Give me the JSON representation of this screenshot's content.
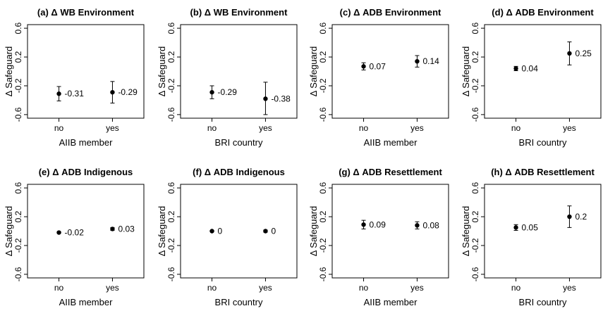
{
  "chart_data": [
    {
      "type": "scatter",
      "title": "(a) Δ WB Environment",
      "xlabel": "AIIB member",
      "ylabel": "Δ Safeguard",
      "categories": [
        "no",
        "yes"
      ],
      "values": [
        -0.31,
        -0.29
      ],
      "lower": [
        -0.41,
        -0.44
      ],
      "upper": [
        -0.21,
        -0.14
      ],
      "labels": [
        "-0.31",
        "-0.29"
      ],
      "ylim": [
        -0.65,
        0.65
      ],
      "yticks": [
        "-0.6",
        "-0.2",
        "0.2",
        "0.6"
      ],
      "grid": false
    },
    {
      "type": "scatter",
      "title": "(b) Δ WB Environment",
      "xlabel": "BRI country",
      "ylabel": "Δ Safeguard",
      "categories": [
        "no",
        "yes"
      ],
      "values": [
        -0.29,
        -0.38
      ],
      "lower": [
        -0.38,
        -0.6
      ],
      "upper": [
        -0.2,
        -0.15
      ],
      "labels": [
        "-0.29",
        "-0.38"
      ],
      "ylim": [
        -0.65,
        0.65
      ],
      "yticks": [
        "-0.6",
        "-0.2",
        "0.2",
        "0.6"
      ],
      "grid": false
    },
    {
      "type": "scatter",
      "title": "(c) Δ ADB Environment",
      "xlabel": "AIIB member",
      "ylabel": "Δ Safeguard",
      "categories": [
        "no",
        "yes"
      ],
      "values": [
        0.07,
        0.14
      ],
      "lower": [
        0.02,
        0.06
      ],
      "upper": [
        0.12,
        0.22
      ],
      "labels": [
        "0.07",
        "0.14"
      ],
      "ylim": [
        -0.65,
        0.65
      ],
      "yticks": [
        "-0.6",
        "-0.2",
        "0.2",
        "0.6"
      ],
      "grid": false
    },
    {
      "type": "scatter",
      "title": "(d) Δ ADB Environment",
      "xlabel": "BRI country",
      "ylabel": "Δ Safeguard",
      "categories": [
        "no",
        "yes"
      ],
      "values": [
        0.04,
        0.25
      ],
      "lower": [
        0.01,
        0.09
      ],
      "upper": [
        0.07,
        0.41
      ],
      "labels": [
        "0.04",
        "0.25"
      ],
      "ylim": [
        -0.65,
        0.65
      ],
      "yticks": [
        "-0.6",
        "-0.2",
        "0.2",
        "0.6"
      ],
      "grid": false
    },
    {
      "type": "scatter",
      "title": "(e) Δ ADB Indigenous",
      "xlabel": "AIIB member",
      "ylabel": "Δ Safeguard",
      "categories": [
        "no",
        "yes"
      ],
      "values": [
        -0.02,
        0.03
      ],
      "lower": [
        -0.03,
        0.01
      ],
      "upper": [
        -0.01,
        0.05
      ],
      "labels": [
        "-0.02",
        "0.03"
      ],
      "ylim": [
        -0.65,
        0.65
      ],
      "yticks": [
        "-0.6",
        "-0.2",
        "0.2",
        "0.6"
      ],
      "grid": false
    },
    {
      "type": "scatter",
      "title": "(f) Δ ADB Indigenous",
      "xlabel": "BRI country",
      "ylabel": "Δ Safeguard",
      "categories": [
        "no",
        "yes"
      ],
      "values": [
        0,
        0
      ],
      "lower": [
        -0.01,
        -0.015
      ],
      "upper": [
        0.01,
        0.015
      ],
      "labels": [
        "0",
        "0"
      ],
      "ylim": [
        -0.65,
        0.65
      ],
      "yticks": [
        "-0.6",
        "-0.2",
        "0.2",
        "0.6"
      ],
      "grid": false
    },
    {
      "type": "scatter",
      "title": "(g) Δ ADB Resettlement",
      "xlabel": "AIIB member",
      "ylabel": "Δ Safeguard",
      "categories": [
        "no",
        "yes"
      ],
      "values": [
        0.09,
        0.08
      ],
      "lower": [
        0.03,
        0.03
      ],
      "upper": [
        0.15,
        0.13
      ],
      "labels": [
        "0.09",
        "0.08"
      ],
      "ylim": [
        -0.65,
        0.65
      ],
      "yticks": [
        "-0.6",
        "-0.2",
        "0.2",
        "0.6"
      ],
      "grid": false
    },
    {
      "type": "scatter",
      "title": "(h) Δ ADB Resettlement",
      "xlabel": "BRI country",
      "ylabel": "Δ Safeguard",
      "categories": [
        "no",
        "yes"
      ],
      "values": [
        0.05,
        0.2
      ],
      "lower": [
        0.01,
        0.05
      ],
      "upper": [
        0.09,
        0.35
      ],
      "labels": [
        "0.05",
        "0.2"
      ],
      "ylim": [
        -0.65,
        0.65
      ],
      "yticks": [
        "-0.6",
        "-0.2",
        "0.2",
        "0.6"
      ],
      "grid": false
    }
  ]
}
